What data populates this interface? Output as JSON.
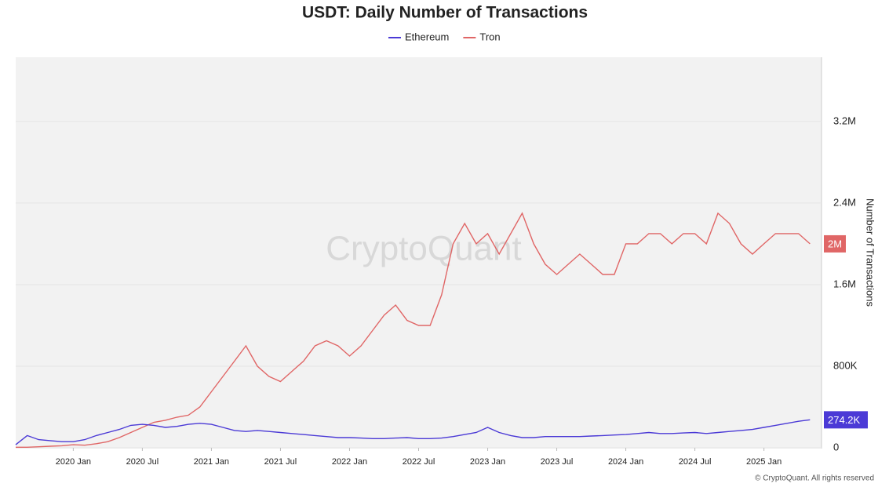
{
  "chart_data": {
    "type": "line",
    "title": "USDT: Daily Number of Transactions",
    "y_label": "Number of Transactions",
    "watermark": "CryptoQuant",
    "footer": "© CryptoQuant. All rights reserved",
    "x": [
      "2019-08",
      "2019-09",
      "2019-10",
      "2019-11",
      "2019-12",
      "2020-01",
      "2020-02",
      "2020-03",
      "2020-04",
      "2020-05",
      "2020-06",
      "2020-07",
      "2020-08",
      "2020-09",
      "2020-10",
      "2020-11",
      "2020-12",
      "2021-01",
      "2021-02",
      "2021-03",
      "2021-04",
      "2021-05",
      "2021-06",
      "2021-07",
      "2021-08",
      "2021-09",
      "2021-10",
      "2021-11",
      "2021-12",
      "2022-01",
      "2022-02",
      "2022-03",
      "2022-04",
      "2022-05",
      "2022-06",
      "2022-07",
      "2022-08",
      "2022-09",
      "2022-10",
      "2022-11",
      "2022-12",
      "2023-01",
      "2023-02",
      "2023-03",
      "2023-04",
      "2023-05",
      "2023-06",
      "2023-07",
      "2023-08",
      "2023-09",
      "2023-10",
      "2023-11",
      "2023-12",
      "2024-01",
      "2024-02",
      "2024-03",
      "2024-04",
      "2024-05",
      "2024-06",
      "2024-07",
      "2024-08",
      "2024-09",
      "2024-10",
      "2024-11",
      "2024-12",
      "2025-01",
      "2025-02",
      "2025-03",
      "2025-04",
      "2025-05"
    ],
    "series": [
      {
        "name": "Ethereum",
        "color": "#4b3ad6",
        "current_label": "274.2K",
        "values": [
          30000,
          120000,
          80000,
          70000,
          60000,
          60000,
          80000,
          120000,
          150000,
          180000,
          220000,
          230000,
          220000,
          200000,
          210000,
          230000,
          240000,
          230000,
          200000,
          170000,
          160000,
          170000,
          160000,
          150000,
          140000,
          130000,
          120000,
          110000,
          100000,
          100000,
          95000,
          90000,
          90000,
          95000,
          100000,
          90000,
          90000,
          95000,
          110000,
          130000,
          150000,
          200000,
          150000,
          120000,
          100000,
          100000,
          110000,
          110000,
          110000,
          110000,
          115000,
          120000,
          125000,
          130000,
          140000,
          150000,
          140000,
          140000,
          145000,
          150000,
          140000,
          150000,
          160000,
          170000,
          180000,
          200000,
          220000,
          240000,
          260000,
          274200
        ]
      },
      {
        "name": "Tron",
        "color": "#e06666",
        "current_label": "2M",
        "values": [
          5000,
          5000,
          10000,
          15000,
          20000,
          30000,
          25000,
          40000,
          60000,
          100000,
          150000,
          200000,
          250000,
          270000,
          300000,
          320000,
          400000,
          550000,
          700000,
          850000,
          1000000,
          800000,
          700000,
          650000,
          750000,
          850000,
          1000000,
          1050000,
          1000000,
          900000,
          1000000,
          1150000,
          1300000,
          1400000,
          1250000,
          1200000,
          1200000,
          1500000,
          2000000,
          2200000,
          2000000,
          2100000,
          1900000,
          2100000,
          2300000,
          2000000,
          1800000,
          1700000,
          1800000,
          1900000,
          1800000,
          1700000,
          1700000,
          2000000,
          2000000,
          2100000,
          2100000,
          2000000,
          2100000,
          2100000,
          2000000,
          2300000,
          2200000,
          2000000,
          1900000,
          2000000,
          2100000,
          2100000,
          2100000,
          2000000
        ]
      }
    ],
    "xlim": [
      "2019-08",
      "2025-06"
    ],
    "xticks": [
      {
        "value": "2020-01",
        "label": "2020 Jan"
      },
      {
        "value": "2020-07",
        "label": "2020 Jul"
      },
      {
        "value": "2021-01",
        "label": "2021 Jan"
      },
      {
        "value": "2021-07",
        "label": "2021 Jul"
      },
      {
        "value": "2022-01",
        "label": "2022 Jan"
      },
      {
        "value": "2022-07",
        "label": "2022 Jul"
      },
      {
        "value": "2023-01",
        "label": "2023 Jan"
      },
      {
        "value": "2023-07",
        "label": "2023 Jul"
      },
      {
        "value": "2024-01",
        "label": "2024 Jan"
      },
      {
        "value": "2024-07",
        "label": "2024 Jul"
      },
      {
        "value": "2025-01",
        "label": "2025 Jan"
      }
    ],
    "ylim": [
      0,
      3830000
    ],
    "yticks": [
      0,
      {
        "value": 800000,
        "label": "800K"
      },
      {
        "value": 1600000,
        "label": "1.6M"
      },
      {
        "value": 2400000,
        "label": "2.4M"
      },
      {
        "value": 3200000,
        "label": "3.2M"
      }
    ],
    "grid": true
  }
}
